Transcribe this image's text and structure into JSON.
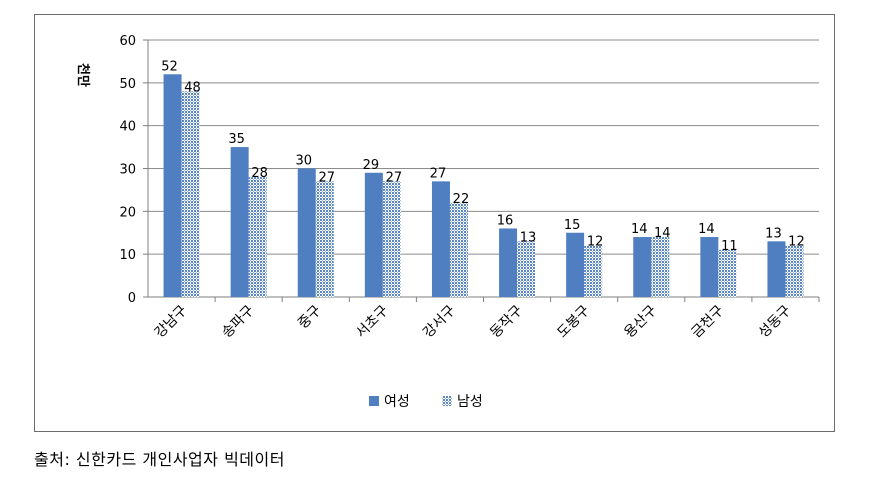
{
  "chart_data": {
    "type": "bar",
    "ylabel": "천만",
    "ylim": [
      0,
      60
    ],
    "yticks": [
      "0",
      "10",
      "20",
      "30",
      "40",
      "50",
      "60"
    ],
    "grid": true,
    "legend_position": "bottom",
    "categories": [
      "강남구",
      "송파구",
      "중구",
      "서초구",
      "강서구",
      "동작구",
      "도봉구",
      "용산구",
      "금천구",
      "성동구"
    ],
    "series": [
      {
        "name": "여성",
        "values": [
          52,
          35,
          30,
          29,
          27,
          16,
          15,
          14,
          14,
          13
        ],
        "color": "#4f7fc0",
        "pattern": "solid"
      },
      {
        "name": "남성",
        "values": [
          48,
          28,
          27,
          27,
          22,
          13,
          12,
          14,
          11,
          12
        ],
        "color": "#4f7fc0",
        "pattern": "dotted"
      }
    ],
    "data_labels": [
      [
        "52",
        "35",
        "30",
        "29",
        "27",
        "16",
        "15",
        "14",
        "14",
        "13"
      ],
      [
        "48",
        "28",
        "27",
        "27",
        "22",
        "13",
        "12",
        "14",
        "11",
        "12"
      ]
    ]
  },
  "source_note": "출처: 신한카드 개인사업자 빅데이터"
}
